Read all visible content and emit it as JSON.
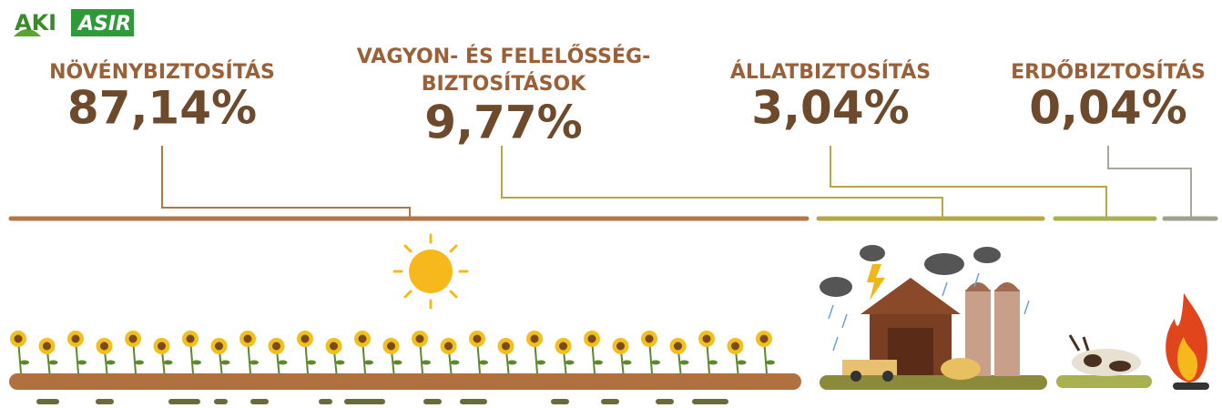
{
  "logo": {
    "left": "AKI",
    "right": "ASIR"
  },
  "items": [
    {
      "label": [
        "NÖVÉNYBIZTOSÍTÁS"
      ],
      "value": "87,14%"
    },
    {
      "label": [
        "VAGYON- ÉS FELELŐSSÉG-",
        "BIZTOSÍTÁSOK"
      ],
      "value": "9,77%"
    },
    {
      "label": [
        "ÁLLATBIZTOSÍTÁS"
      ],
      "value": "3,04%"
    },
    {
      "label": [
        "ERDŐBIZTOSÍTÁS"
      ],
      "value": "0,04%"
    }
  ]
}
